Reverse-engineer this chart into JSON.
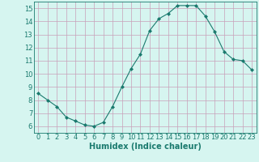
{
  "x": [
    0,
    1,
    2,
    3,
    4,
    5,
    6,
    7,
    8,
    9,
    10,
    11,
    12,
    13,
    14,
    15,
    16,
    17,
    18,
    19,
    20,
    21,
    22,
    23
  ],
  "y": [
    8.5,
    8.0,
    7.5,
    6.7,
    6.4,
    6.1,
    6.0,
    6.3,
    7.5,
    9.0,
    10.4,
    11.5,
    13.3,
    14.2,
    14.6,
    15.2,
    15.2,
    15.2,
    14.4,
    13.2,
    11.7,
    11.1,
    11.0,
    10.3
  ],
  "line_color": "#1a7a6e",
  "marker": "D",
  "marker_size": 2,
  "bg_color": "#d6f5f0",
  "grid_color": "#c8a0b8",
  "xlabel": "Humidex (Indice chaleur)",
  "xlim": [
    -0.5,
    23.5
  ],
  "ylim": [
    5.5,
    15.5
  ],
  "yticks": [
    6,
    7,
    8,
    9,
    10,
    11,
    12,
    13,
    14,
    15
  ],
  "xticks": [
    0,
    1,
    2,
    3,
    4,
    5,
    6,
    7,
    8,
    9,
    10,
    11,
    12,
    13,
    14,
    15,
    16,
    17,
    18,
    19,
    20,
    21,
    22,
    23
  ],
  "tick_fontsize": 6,
  "xlabel_fontsize": 7
}
